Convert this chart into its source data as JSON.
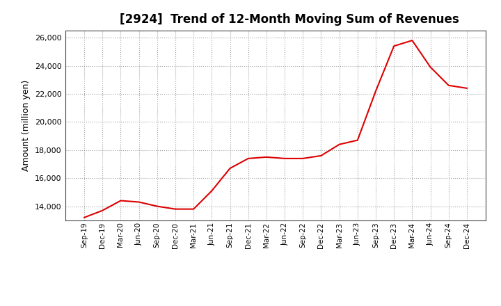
{
  "title": "[2924]  Trend of 12-Month Moving Sum of Revenues",
  "ylabel": "Amount (million yen)",
  "line_color": "#dd0000",
  "background_color": "#ffffff",
  "plot_bg_color": "#ffffff",
  "grid_color": "#999999",
  "ylim": [
    13000,
    26500
  ],
  "yticks": [
    14000,
    16000,
    18000,
    20000,
    22000,
    24000,
    26000
  ],
  "x_labels": [
    "Sep-19",
    "Dec-19",
    "Mar-20",
    "Jun-20",
    "Sep-20",
    "Dec-20",
    "Mar-21",
    "Jun-21",
    "Sep-21",
    "Dec-21",
    "Mar-22",
    "Jun-22",
    "Sep-22",
    "Dec-22",
    "Mar-23",
    "Jun-23",
    "Sep-23",
    "Dec-23",
    "Mar-24",
    "Jun-24",
    "Sep-24",
    "Dec-24"
  ],
  "values": [
    13200,
    13700,
    14400,
    14300,
    14000,
    13800,
    13800,
    15100,
    16700,
    17400,
    17500,
    17400,
    17400,
    17600,
    18400,
    18700,
    22200,
    25400,
    25800,
    23900,
    22600,
    22400
  ]
}
